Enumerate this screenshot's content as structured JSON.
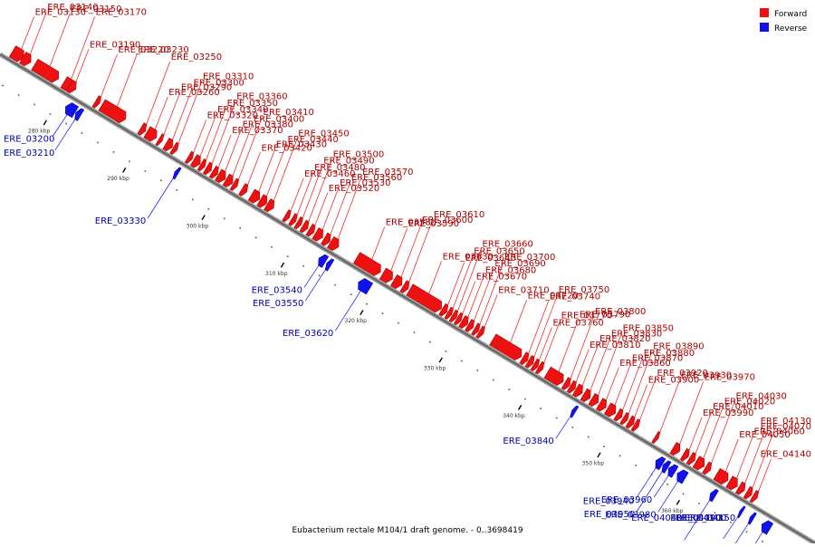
{
  "caption": "Eubacterium rectale M104/1 draft genome. - 0..3698419",
  "colors": {
    "forward": "#ee1111",
    "reverse": "#1111ee",
    "forward_dark": "#aa0000",
    "reverse_dark": "#0000aa",
    "axis": "#888888"
  },
  "legend": {
    "forward": "Forward",
    "reverse": "Reverse"
  },
  "axis": {
    "start_kbp": 272,
    "end_kbp": 375,
    "ticks": [
      "280 kbp",
      "290 kbp",
      "300 kbp",
      "310 kbp",
      "320 kbp",
      "330 kbp",
      "340 kbp",
      "350 kbp",
      "360 kbp"
    ]
  },
  "forward_genes": [
    {
      "name": "ERE_03130",
      "kbp": 273.0,
      "len": 1.4
    },
    {
      "name": "ERE_03140",
      "kbp": 274.3,
      "len": 1.0
    },
    {
      "name": "ERE_03150",
      "kbp": 275.8,
      "len": 3.0
    },
    {
      "name": "ERE_03170",
      "kbp": 279.5,
      "len": 1.0
    },
    {
      "name": "ERE_03190",
      "kbp": 280.2,
      "len": 0.8
    },
    {
      "name": "ERE_03220",
      "kbp": 283.5,
      "len": 0.5
    },
    {
      "name": "ERE_03230",
      "kbp": 284.3,
      "len": 3.0
    },
    {
      "name": "ERE_03250",
      "kbp": 289.2,
      "len": 0.6
    },
    {
      "name": "ERE_03260",
      "kbp": 290.0,
      "len": 1.2
    },
    {
      "name": "ERE_03290",
      "kbp": 291.5,
      "len": 0.4
    },
    {
      "name": "ERE_03300",
      "kbp": 292.4,
      "len": 0.8
    },
    {
      "name": "ERE_03310",
      "kbp": 293.3,
      "len": 0.5
    },
    {
      "name": "ERE_03320",
      "kbp": 295.2,
      "len": 0.5
    },
    {
      "name": "ERE_03340",
      "kbp": 295.9,
      "len": 0.8
    },
    {
      "name": "ERE_03350",
      "kbp": 296.8,
      "len": 0.5
    },
    {
      "name": "ERE_03360",
      "kbp": 297.5,
      "len": 0.6
    },
    {
      "name": "ERE_03370",
      "kbp": 298.3,
      "len": 0.6
    },
    {
      "name": "ERE_03380",
      "kbp": 299.0,
      "len": 0.9
    },
    {
      "name": "ERE_03400",
      "kbp": 300.0,
      "len": 0.8
    },
    {
      "name": "ERE_03410",
      "kbp": 300.9,
      "len": 0.5
    },
    {
      "name": "ERE_03420",
      "kbp": 302.0,
      "len": 0.6
    },
    {
      "name": "ERE_03430",
      "kbp": 303.2,
      "len": 1.0
    },
    {
      "name": "ERE_03440",
      "kbp": 304.3,
      "len": 0.8
    },
    {
      "name": "ERE_03450",
      "kbp": 305.2,
      "len": 0.8
    },
    {
      "name": "ERE_03460",
      "kbp": 307.5,
      "len": 0.5
    },
    {
      "name": "ERE_03480",
      "kbp": 308.3,
      "len": 0.5
    },
    {
      "name": "ERE_03490",
      "kbp": 309.0,
      "len": 0.5
    },
    {
      "name": "ERE_03500",
      "kbp": 309.7,
      "len": 0.6
    },
    {
      "name": "ERE_03520",
      "kbp": 310.5,
      "len": 0.6
    },
    {
      "name": "ERE_03530",
      "kbp": 311.3,
      "len": 0.9
    },
    {
      "name": "ERE_03560",
      "kbp": 312.4,
      "len": 0.7
    },
    {
      "name": "ERE_03570",
      "kbp": 313.2,
      "len": 1.0
    },
    {
      "name": "ERE_03580",
      "kbp": 316.5,
      "len": 3.0
    },
    {
      "name": "ERE_03590",
      "kbp": 319.8,
      "len": 1.2
    },
    {
      "name": "ERE_03600",
      "kbp": 321.2,
      "len": 1.0
    },
    {
      "name": "ERE_03610",
      "kbp": 322.4,
      "len": 0.6
    },
    {
      "name": "ERE_03630",
      "kbp": 323.2,
      "len": 4.0
    },
    {
      "name": "ERE_03640",
      "kbp": 327.3,
      "len": 0.6
    },
    {
      "name": "ERE_03650",
      "kbp": 328.0,
      "len": 0.5
    },
    {
      "name": "ERE_03660",
      "kbp": 328.6,
      "len": 0.5
    },
    {
      "name": "ERE_03670",
      "kbp": 329.2,
      "len": 0.5
    },
    {
      "name": "ERE_03680",
      "kbp": 329.8,
      "len": 0.7
    },
    {
      "name": "ERE_03690",
      "kbp": 330.6,
      "len": 0.6
    },
    {
      "name": "ERE_03700",
      "kbp": 331.4,
      "len": 0.5
    },
    {
      "name": "ERE_03710",
      "kbp": 332.0,
      "len": 0.5
    },
    {
      "name": "ERE_03720",
      "kbp": 333.7,
      "len": 3.6
    },
    {
      "name": "ERE_03740",
      "kbp": 337.5,
      "len": 0.6
    },
    {
      "name": "ERE_03750",
      "kbp": 338.2,
      "len": 0.6
    },
    {
      "name": "ERE_03760",
      "kbp": 338.9,
      "len": 0.5
    },
    {
      "name": "ERE_03770",
      "kbp": 339.5,
      "len": 0.5
    },
    {
      "name": "ERE_03790",
      "kbp": 340.6,
      "len": 2.0
    },
    {
      "name": "ERE_03800",
      "kbp": 342.8,
      "len": 0.6
    },
    {
      "name": "ERE_03810",
      "kbp": 343.5,
      "len": 0.6
    },
    {
      "name": "ERE_03820",
      "kbp": 344.2,
      "len": 0.8
    },
    {
      "name": "ERE_03830",
      "kbp": 345.2,
      "len": 0.8
    },
    {
      "name": "ERE_03850",
      "kbp": 346.2,
      "len": 0.8
    },
    {
      "name": "ERE_03860",
      "kbp": 347.2,
      "len": 0.8
    },
    {
      "name": "ERE_03870",
      "kbp": 348.2,
      "len": 1.0
    },
    {
      "name": "ERE_03880",
      "kbp": 349.4,
      "len": 0.6
    },
    {
      "name": "ERE_03890",
      "kbp": 350.2,
      "len": 0.5
    },
    {
      "name": "ERE_03900",
      "kbp": 350.9,
      "len": 0.6
    },
    {
      "name": "ERE_03920",
      "kbp": 351.6,
      "len": 0.5
    },
    {
      "name": "ERE_03930",
      "kbp": 354.2,
      "len": 0.4
    },
    {
      "name": "ERE_03970",
      "kbp": 356.5,
      "len": 0.8
    },
    {
      "name": "ERE_03990",
      "kbp": 357.8,
      "len": 0.6
    },
    {
      "name": "ERE_04010",
      "kbp": 358.6,
      "len": 0.6
    },
    {
      "name": "ERE_04020",
      "kbp": 359.4,
      "len": 1.0
    },
    {
      "name": "ERE_04030",
      "kbp": 360.6,
      "len": 0.6
    },
    {
      "name": "ERE_04050",
      "kbp": 362.0,
      "len": 1.4
    },
    {
      "name": "ERE_04060",
      "kbp": 363.6,
      "len": 1.0
    },
    {
      "name": "ERE_04070",
      "kbp": 364.8,
      "len": 0.7
    },
    {
      "name": "ERE_04130",
      "kbp": 365.8,
      "len": 0.6
    },
    {
      "name": "ERE_04140",
      "kbp": 366.6,
      "len": 0.5
    }
  ],
  "reverse_genes": [
    {
      "name": "ERE_03200",
      "kbp": 281.0,
      "len": 1.2
    },
    {
      "name": "ERE_03210",
      "kbp": 282.3,
      "len": 0.6
    },
    {
      "name": "ERE_03330",
      "kbp": 294.8,
      "len": 0.4
    },
    {
      "name": "ERE_03540",
      "kbp": 313.0,
      "len": 0.8
    },
    {
      "name": "ERE_03550",
      "kbp": 314.0,
      "len": 0.5
    },
    {
      "name": "ERE_03620",
      "kbp": 318.0,
      "len": 1.4
    },
    {
      "name": "ERE_03840",
      "kbp": 345.0,
      "len": 0.4
    },
    {
      "name": "ERE_03940",
      "kbp": 355.6,
      "len": 0.8
    },
    {
      "name": "ERE_03950",
      "kbp": 356.5,
      "len": 0.6
    },
    {
      "name": "ERE_03960",
      "kbp": 357.2,
      "len": 0.8
    },
    {
      "name": "ERE_03980",
      "kbp": 358.3,
      "len": 1.0
    },
    {
      "name": "ERE_04040",
      "kbp": 362.5,
      "len": 0.6
    },
    {
      "name": "ERE_04090",
      "kbp": 366.2,
      "len": 0.3
    },
    {
      "name": "ERE_04100",
      "kbp": 367.5,
      "len": 0.4
    },
    {
      "name": "ERE_04150",
      "kbp": 369.0,
      "len": 1.0
    }
  ]
}
